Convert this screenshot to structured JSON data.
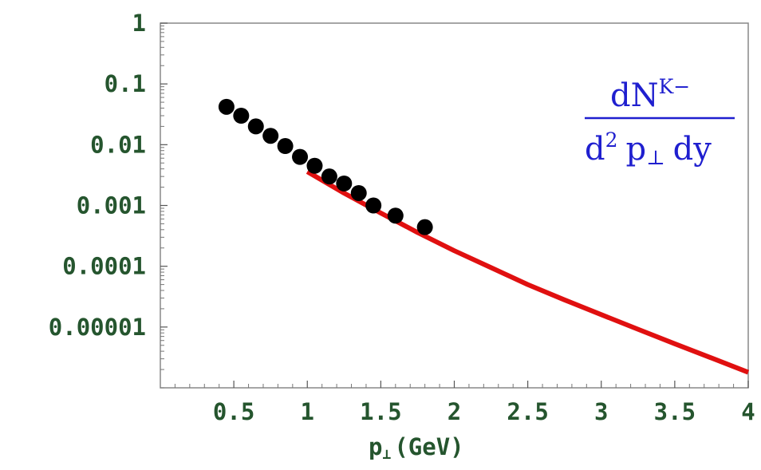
{
  "chart_data": {
    "type": "scatter",
    "log_y": true,
    "xlim": [
      0,
      4
    ],
    "ylim": [
      1e-06,
      1
    ],
    "xticks": [
      0.5,
      1,
      1.5,
      2,
      2.5,
      3,
      3.5,
      4
    ],
    "xtick_labels": [
      "0.5",
      "1",
      "1.5",
      "2",
      "2.5",
      "3",
      "3.5",
      "4"
    ],
    "yticks": [
      1,
      0.1,
      0.01,
      0.001,
      0.0001,
      1e-05
    ],
    "ytick_labels": [
      "1",
      "0.1",
      "0.01",
      "0.001",
      "0.0001",
      "0.00001"
    ],
    "xlabel": {
      "main": "p",
      "sub": "⊥",
      "rest": "(GeV)"
    },
    "annotation": {
      "numerator": "dN",
      "numerator_sup": "K−",
      "denominator_pre": "d",
      "denominator_sup": "2",
      "denominator_mid": "p",
      "denominator_sub": "⊥",
      "denominator_post": "dy",
      "color": "#1f1fcf"
    },
    "series": [
      {
        "type": "scatter",
        "color": "#000000",
        "points": [
          {
            "x": 0.45,
            "y": 0.042
          },
          {
            "x": 0.55,
            "y": 0.03
          },
          {
            "x": 0.65,
            "y": 0.02
          },
          {
            "x": 0.75,
            "y": 0.014
          },
          {
            "x": 0.85,
            "y": 0.0095
          },
          {
            "x": 0.95,
            "y": 0.0063
          },
          {
            "x": 1.05,
            "y": 0.0045
          },
          {
            "x": 1.15,
            "y": 0.003
          },
          {
            "x": 1.25,
            "y": 0.0023
          },
          {
            "x": 1.35,
            "y": 0.0016
          },
          {
            "x": 1.45,
            "y": 0.001
          },
          {
            "x": 1.6,
            "y": 0.00068
          },
          {
            "x": 1.8,
            "y": 0.00044
          }
        ]
      },
      {
        "type": "line",
        "color": "#e01010",
        "points": [
          {
            "x": 1.0,
            "y": 0.0036
          },
          {
            "x": 1.25,
            "y": 0.0016
          },
          {
            "x": 1.5,
            "y": 0.00075
          },
          {
            "x": 1.75,
            "y": 0.00036
          },
          {
            "x": 2.0,
            "y": 0.00018
          },
          {
            "x": 2.25,
            "y": 9.5e-05
          },
          {
            "x": 2.5,
            "y": 5e-05
          },
          {
            "x": 2.75,
            "y": 2.8e-05
          },
          {
            "x": 3.0,
            "y": 1.6e-05
          },
          {
            "x": 3.25,
            "y": 9.2e-06
          },
          {
            "x": 3.5,
            "y": 5.3e-06
          },
          {
            "x": 3.75,
            "y": 3.1e-06
          },
          {
            "x": 4.0,
            "y": 1.8e-06
          }
        ]
      }
    ]
  }
}
